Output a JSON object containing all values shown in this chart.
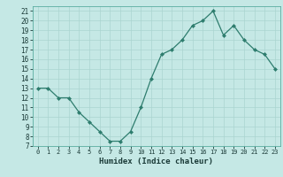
{
  "x": [
    0,
    1,
    2,
    3,
    4,
    5,
    6,
    7,
    8,
    9,
    10,
    11,
    12,
    13,
    14,
    15,
    16,
    17,
    18,
    19,
    20,
    21,
    22,
    23
  ],
  "y": [
    13,
    13,
    12,
    12,
    10.5,
    9.5,
    8.5,
    7.5,
    7.5,
    8.5,
    11,
    14,
    16.5,
    17,
    18,
    19.5,
    20,
    21,
    18.5,
    19.5,
    18,
    17,
    16.5,
    15
  ],
  "line_color": "#2e7d6e",
  "marker_color": "#2e7d6e",
  "bg_color": "#c5e8e5",
  "grid_color": "#aad4d0",
  "xlabel": "Humidex (Indice chaleur)",
  "ylim": [
    7,
    21.5
  ],
  "xlim": [
    -0.5,
    23.5
  ],
  "yticks": [
    7,
    8,
    9,
    10,
    11,
    12,
    13,
    14,
    15,
    16,
    17,
    18,
    19,
    20,
    21
  ],
  "xticks": [
    0,
    1,
    2,
    3,
    4,
    5,
    6,
    7,
    8,
    9,
    10,
    11,
    12,
    13,
    14,
    15,
    16,
    17,
    18,
    19,
    20,
    21,
    22,
    23
  ]
}
